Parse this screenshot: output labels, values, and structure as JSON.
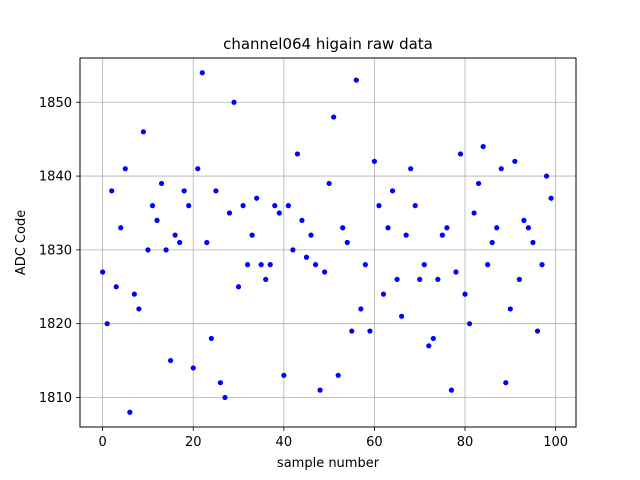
{
  "chart_data": {
    "type": "scatter",
    "title": "channel064 higain raw data",
    "xlabel": "sample number",
    "ylabel": "ADC Code",
    "xlim": [
      -5,
      104.5
    ],
    "ylim": [
      1806,
      1856
    ],
    "xticks": [
      0,
      20,
      40,
      60,
      80,
      100
    ],
    "yticks": [
      1810,
      1820,
      1830,
      1840,
      1850
    ],
    "grid": true,
    "marker_color": "#0000ff",
    "series": [
      {
        "x": [
          0,
          1,
          2,
          3,
          4,
          5,
          6,
          7,
          8,
          9,
          10,
          11,
          12,
          13,
          14,
          15,
          16,
          17,
          18,
          19,
          20,
          21,
          22,
          23,
          24,
          25,
          26,
          27,
          28,
          29,
          30,
          31,
          32,
          33,
          34,
          35,
          36,
          37,
          38,
          39,
          40,
          41,
          42,
          43,
          44,
          45,
          46,
          47,
          48,
          49,
          50,
          51,
          52,
          53,
          54,
          55,
          56,
          57,
          58,
          59,
          60,
          61,
          62,
          63,
          64,
          65,
          66,
          67,
          68,
          69,
          70,
          71,
          72,
          73,
          74,
          75,
          76,
          77,
          78,
          79,
          80,
          81,
          82,
          83,
          84,
          85,
          86,
          87,
          88,
          89,
          90,
          91,
          92,
          93,
          94,
          95,
          96,
          97,
          98,
          99
        ],
        "y": [
          1827,
          1820,
          1838,
          1825,
          1833,
          1841,
          1808,
          1824,
          1822,
          1846,
          1830,
          1836,
          1834,
          1839,
          1830,
          1815,
          1832,
          1831,
          1838,
          1836,
          1814,
          1841,
          1854,
          1831,
          1818,
          1838,
          1812,
          1810,
          1835,
          1850,
          1825,
          1836,
          1828,
          1832,
          1837,
          1828,
          1826,
          1828,
          1836,
          1835,
          1813,
          1836,
          1830,
          1843,
          1834,
          1829,
          1832,
          1828,
          1811,
          1827,
          1839,
          1848,
          1813,
          1833,
          1831,
          1819,
          1853,
          1822,
          1828,
          1819,
          1842,
          1836,
          1824,
          1833,
          1838,
          1826,
          1821,
          1832,
          1841,
          1836,
          1826,
          1828,
          1817,
          1818,
          1826,
          1832,
          1833,
          1811,
          1827,
          1843,
          1824,
          1820,
          1835,
          1839,
          1844,
          1828,
          1831,
          1833,
          1841,
          1812,
          1822,
          1842,
          1826,
          1834,
          1833,
          1831,
          1819,
          1828,
          1840,
          1837
        ]
      }
    ]
  }
}
